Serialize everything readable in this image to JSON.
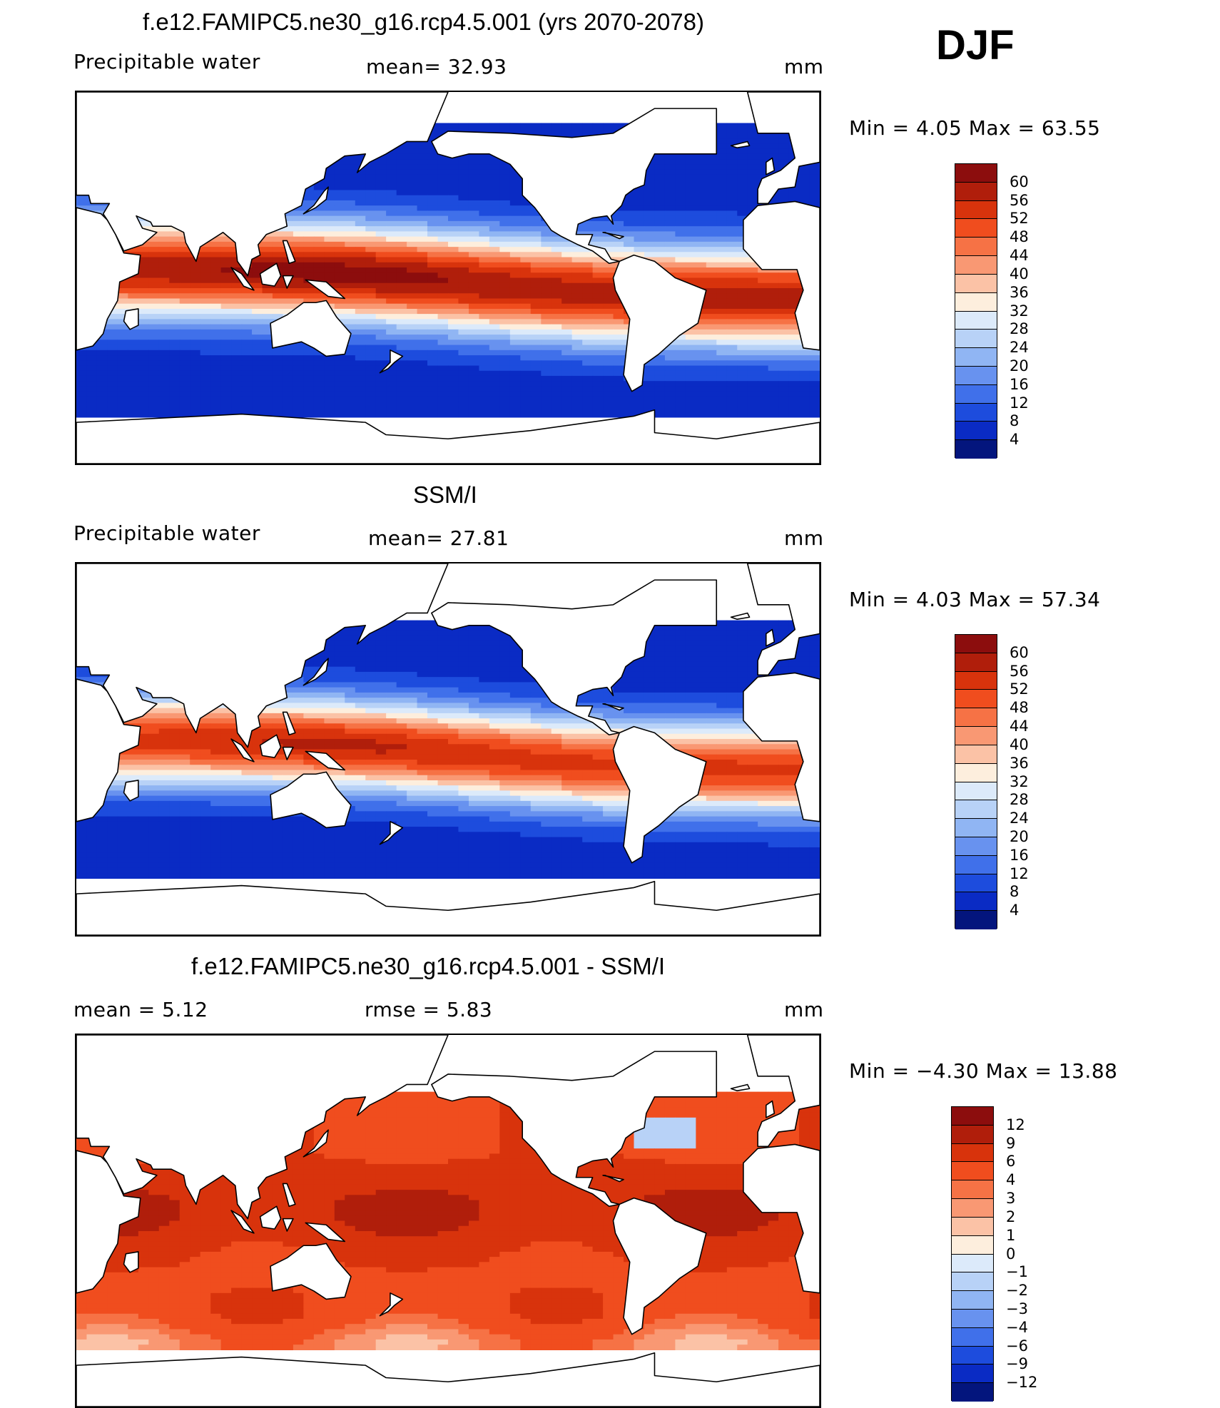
{
  "season": "DJF",
  "panels": [
    {
      "title": "f.e12.FAMIPC5.ne30_g16.rcp4.5.001 (yrs 2070-2078)",
      "left_label": "Precipitable  water",
      "center_label": "mean=   32.93",
      "units": "mm",
      "minmax": "Min  =      4.05  Max  =     63.55",
      "colorbar_labels": [
        "60",
        "56",
        "52",
        "48",
        "44",
        "40",
        "36",
        "32",
        "28",
        "24",
        "20",
        "16",
        "12",
        "8",
        "4"
      ],
      "kind": "model"
    },
    {
      "title": "SSM/I",
      "left_label": "Precipitable  water",
      "center_label": "mean=   27.81",
      "units": "mm",
      "minmax": "Min  =      4.03  Max  =     57.34",
      "colorbar_labels": [
        "60",
        "56",
        "52",
        "48",
        "44",
        "40",
        "36",
        "32",
        "28",
        "24",
        "20",
        "16",
        "12",
        "8",
        "4"
      ],
      "kind": "obs"
    },
    {
      "title": "f.e12.FAMIPC5.ne30_g16.rcp4.5.001 - SSM/I",
      "left_label": "mean  =       5.12",
      "center_label": "rmse  =       5.83",
      "units": "mm",
      "minmax": "Min  =    −4.30  Max  =     13.88",
      "colorbar_labels": [
        "12",
        "9",
        "6",
        "4",
        "3",
        "2",
        "1",
        "0",
        "−1",
        "−2",
        "−3",
        "−4",
        "−6",
        "−9",
        "−12"
      ],
      "kind": "diff"
    }
  ],
  "colors": {
    "sequential": [
      "#8c0d0d",
      "#b01e0b",
      "#d8330c",
      "#f04d1e",
      "#f67245",
      "#f99873",
      "#fbc2a6",
      "#fdeedd",
      "#dceafa",
      "#b8d2f7",
      "#90b5f3",
      "#6892ef",
      "#4070ea",
      "#1d4cdd",
      "#0a2bc4",
      "#03157d"
    ],
    "land": "#ffffff",
    "coast": "#000000"
  }
}
